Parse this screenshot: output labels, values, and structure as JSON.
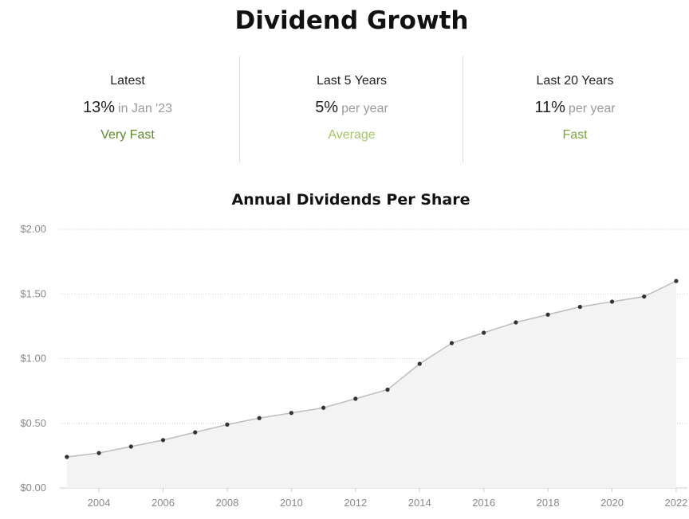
{
  "header": {
    "title": "Dividend Growth"
  },
  "stats": [
    {
      "label": "Latest",
      "value": "13%",
      "unit": "in Jan '23",
      "rating": "Very Fast",
      "rating_color": "#5e8a2a"
    },
    {
      "label": "Last 5 Years",
      "value": "5%",
      "unit": "per year",
      "rating": "Average",
      "rating_color": "#a7c56a"
    },
    {
      "label": "Last 20 Years",
      "value": "11%",
      "unit": "per year",
      "rating": "Fast",
      "rating_color": "#7aa63e"
    }
  ],
  "chart_data": {
    "type": "area",
    "title": "Annual Dividends Per Share",
    "xlabel": "",
    "ylabel": "",
    "x": [
      2003,
      2004,
      2005,
      2006,
      2007,
      2008,
      2009,
      2010,
      2011,
      2012,
      2013,
      2014,
      2015,
      2016,
      2017,
      2018,
      2019,
      2020,
      2021,
      2022
    ],
    "values": [
      0.24,
      0.27,
      0.32,
      0.37,
      0.43,
      0.49,
      0.54,
      0.58,
      0.62,
      0.69,
      0.76,
      0.96,
      1.12,
      1.2,
      1.28,
      1.34,
      1.4,
      1.44,
      1.48,
      1.6
    ],
    "xlim": [
      2002.78,
      2022.2
    ],
    "ylim": [
      0,
      2
    ],
    "yticks": [
      0,
      0.5,
      1.0,
      1.5,
      2.0
    ],
    "ytick_labels": [
      "$0.00",
      "$0.50",
      "$1.00",
      "$1.50",
      "$2.00"
    ],
    "xticks": [
      2004,
      2006,
      2008,
      2010,
      2012,
      2014,
      2016,
      2018,
      2020,
      2022
    ],
    "xtick_labels": [
      "2004",
      "2006",
      "2008",
      "2010",
      "2012",
      "2014",
      "2016",
      "2018",
      "2020",
      "2022"
    ],
    "grid": true,
    "colors": {
      "line": "#bdbdbd",
      "fill": "#f3f3f3",
      "point": "#333333",
      "grid": "#d0d0d0",
      "axis": "#cccccc"
    }
  }
}
